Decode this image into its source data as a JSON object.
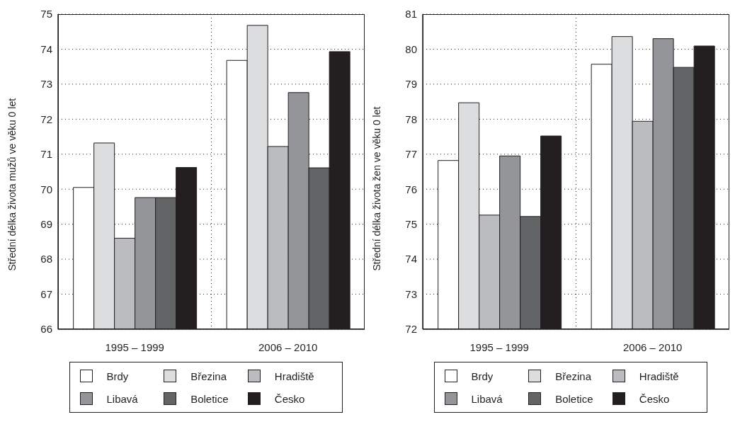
{
  "chart_data": [
    {
      "type": "bar",
      "ylabel": "Střední délka života mužů ve věku 0 let",
      "categories": [
        "1995 – 1999",
        "2006 – 2010"
      ],
      "ylim": [
        66,
        75
      ],
      "yticks": [
        66,
        67,
        68,
        69,
        70,
        71,
        72,
        73,
        74,
        75
      ],
      "grid": true,
      "legend": "bottom",
      "series": [
        {
          "name": "Brdy",
          "color": "#ffffff",
          "values": [
            70.05,
            73.68
          ]
        },
        {
          "name": "Březina",
          "color": "#dcdddf",
          "values": [
            71.32,
            74.68
          ]
        },
        {
          "name": "Hradiště",
          "color": "#bbbcc0",
          "values": [
            68.6,
            71.22
          ]
        },
        {
          "name": "Libavá",
          "color": "#939598",
          "values": [
            69.76,
            72.76
          ]
        },
        {
          "name": "Boletice",
          "color": "#636466",
          "values": [
            69.76,
            70.61
          ]
        },
        {
          "name": "Česko",
          "color": "#231f20",
          "values": [
            70.62,
            73.93
          ]
        }
      ]
    },
    {
      "type": "bar",
      "ylabel": "Střední délka života žen ve věku 0 let",
      "categories": [
        "1995 – 1999",
        "2006 – 2010"
      ],
      "ylim": [
        72,
        81
      ],
      "yticks": [
        72,
        73,
        74,
        75,
        76,
        77,
        78,
        79,
        80,
        81
      ],
      "grid": true,
      "legend": "bottom",
      "series": [
        {
          "name": "Brdy",
          "color": "#ffffff",
          "values": [
            76.82,
            79.57
          ]
        },
        {
          "name": "Březina",
          "color": "#dcdddf",
          "values": [
            78.47,
            80.36
          ]
        },
        {
          "name": "Hradiště",
          "color": "#bbbcc0",
          "values": [
            75.26,
            77.94
          ]
        },
        {
          "name": "Libavá",
          "color": "#939598",
          "values": [
            76.95,
            80.3
          ]
        },
        {
          "name": "Boletice",
          "color": "#636466",
          "values": [
            75.22,
            79.48
          ]
        },
        {
          "name": "Česko",
          "color": "#231f20",
          "values": [
            77.52,
            80.09
          ]
        }
      ]
    }
  ]
}
